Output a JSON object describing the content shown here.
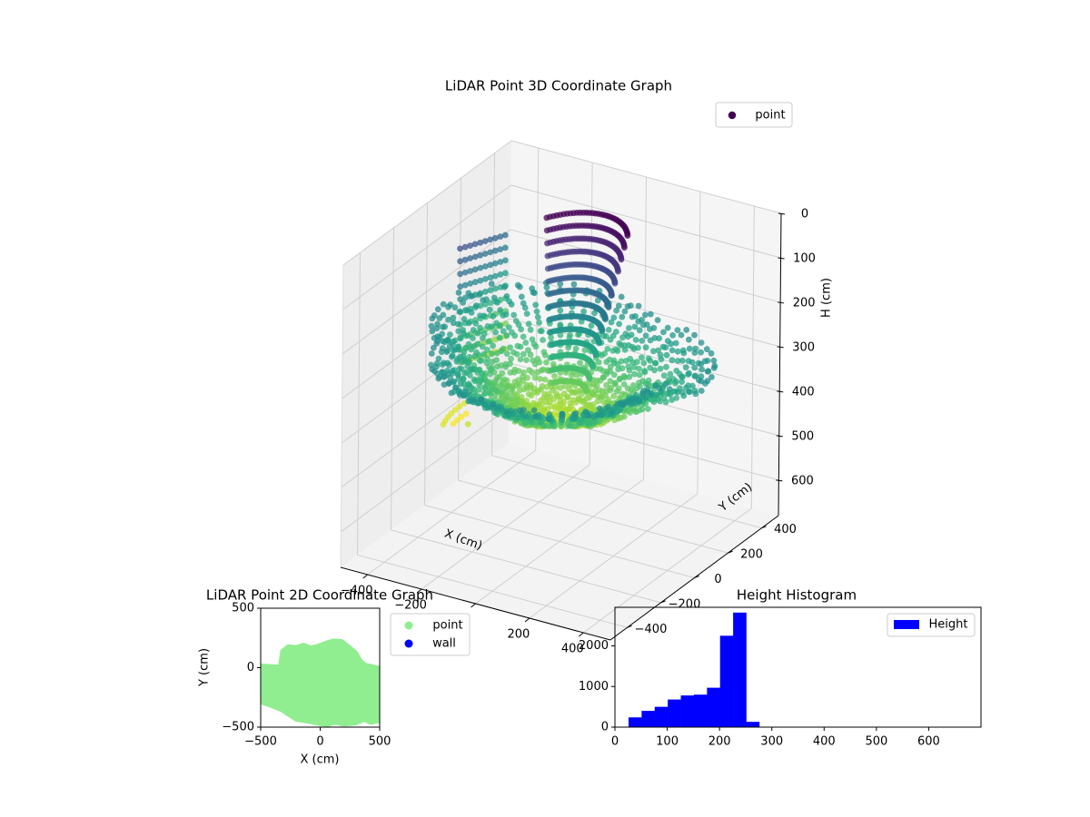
{
  "chart_data": [
    {
      "type": "scatter3d",
      "title": "LiDAR Point 3D Coordinate Graph",
      "xlabel": "X (cm)",
      "ylabel": "Y (cm)",
      "zlabel": "H (cm)",
      "x_ticks": [
        -400,
        -200,
        0,
        200,
        400
      ],
      "y_ticks": [
        -400,
        -200,
        0,
        200,
        400
      ],
      "z_ticks": [
        0,
        100,
        200,
        300,
        400,
        500,
        600
      ],
      "xlim": [
        -500,
        500
      ],
      "ylim": [
        -500,
        500
      ],
      "zlim": [
        680,
        0
      ],
      "z_inverted": true,
      "colormap": "viridis",
      "legend": {
        "entries": [
          "point"
        ],
        "position": "top-right"
      },
      "series": [
        {
          "name": "point",
          "color": "#440154"
        }
      ],
      "grid": true
    },
    {
      "type": "scatter",
      "title": "LiDAR Point 2D Coordinate Graph",
      "xlabel": "X (cm)",
      "ylabel": "Y (cm)",
      "x_ticks": [
        -500,
        0,
        500
      ],
      "y_ticks": [
        -500,
        0,
        500
      ],
      "xlim": [
        -500,
        500
      ],
      "ylim": [
        -500,
        500
      ],
      "legend": {
        "entries": [
          "point",
          "wall"
        ],
        "position": "outside-right"
      },
      "series": [
        {
          "name": "point",
          "color": "#90ee90",
          "outline": [
            [
              -500,
              20
            ],
            [
              -340,
              10
            ],
            [
              -320,
              140
            ],
            [
              -270,
              180
            ],
            [
              -200,
              175
            ],
            [
              -140,
              195
            ],
            [
              -80,
              170
            ],
            [
              -20,
              185
            ],
            [
              60,
              215
            ],
            [
              110,
              230
            ],
            [
              180,
              225
            ],
            [
              240,
              180
            ],
            [
              300,
              130
            ],
            [
              340,
              60
            ],
            [
              380,
              25
            ],
            [
              430,
              15
            ],
            [
              500,
              0
            ],
            [
              500,
              -450
            ],
            [
              420,
              -465
            ],
            [
              370,
              -440
            ],
            [
              300,
              -470
            ],
            [
              200,
              -480
            ],
            [
              120,
              -465
            ],
            [
              60,
              -485
            ],
            [
              -30,
              -470
            ],
            [
              -100,
              -455
            ],
            [
              -200,
              -440
            ],
            [
              -270,
              -395
            ],
            [
              -320,
              -360
            ],
            [
              -420,
              -320
            ],
            [
              -480,
              -300
            ],
            [
              -500,
              -280
            ]
          ]
        },
        {
          "name": "wall",
          "color": "#0000ff"
        }
      ]
    },
    {
      "type": "bar",
      "title": "Height Histogram",
      "xlim": [
        0,
        700
      ],
      "ylim": [
        0,
        2950
      ],
      "x_ticks": [
        0,
        100,
        200,
        300,
        400,
        500,
        600
      ],
      "y_ticks": [
        0,
        1000,
        2000
      ],
      "bin_edges": [
        26,
        51,
        76,
        101,
        126,
        151,
        176,
        201,
        226,
        251,
        276,
        301,
        326,
        351,
        376,
        401,
        426,
        451,
        476,
        501,
        526,
        551,
        576,
        601,
        626,
        651,
        676
      ],
      "values": [
        240,
        400,
        500,
        680,
        780,
        800,
        970,
        2250,
        2820,
        130,
        8,
        5,
        4,
        3,
        3,
        2,
        2,
        2,
        1,
        1,
        1,
        1,
        1,
        1,
        1,
        1
      ],
      "legend": {
        "entries": [
          "Height"
        ],
        "position": "top-right"
      },
      "series": [
        {
          "name": "Height",
          "color": "#0000ff"
        }
      ]
    }
  ]
}
